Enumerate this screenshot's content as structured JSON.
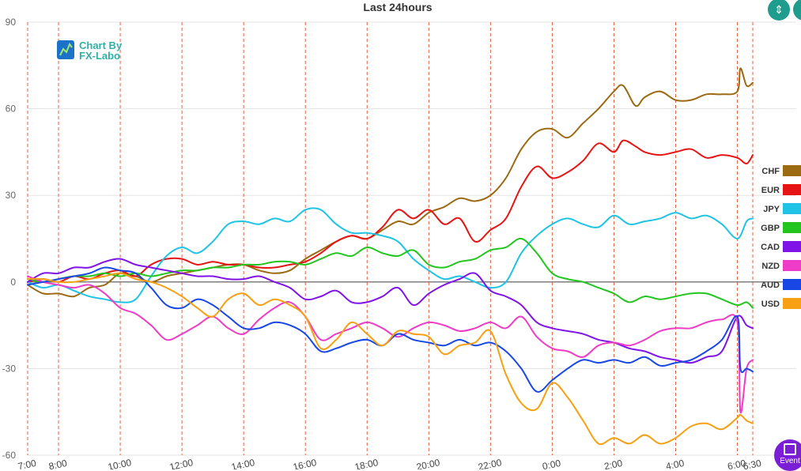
{
  "chart_data": {
    "type": "line",
    "title": "Last 24hours",
    "xlabel": "",
    "ylabel": "",
    "ylim": [
      -60,
      90
    ],
    "yticks": [
      90,
      60,
      30,
      0,
      -30,
      -60
    ],
    "x_range": [
      7.0,
      30.5
    ],
    "x_ticks": [
      {
        "label": "7:00",
        "x": 7.0
      },
      {
        "label": "8:00",
        "x": 8.0
      },
      {
        "label": "10:00",
        "x": 10.0
      },
      {
        "label": "12:00",
        "x": 12.0
      },
      {
        "label": "14:00",
        "x": 14.0
      },
      {
        "label": "16:00",
        "x": 16.0
      },
      {
        "label": "18:00",
        "x": 18.0
      },
      {
        "label": "20:00",
        "x": 20.0
      },
      {
        "label": "22:00",
        "x": 22.0
      },
      {
        "label": "0:00",
        "x": 24.0
      },
      {
        "label": "2:00",
        "x": 26.0
      },
      {
        "label": "4:00",
        "x": 28.0
      },
      {
        "label": "6:00",
        "x": 30.0
      },
      {
        "label": "6:30",
        "x": 30.5
      }
    ],
    "vertical_gridlines_dashed": true,
    "horizontal_grid": true,
    "legend_placement": "right",
    "series": [
      {
        "name": "CHF",
        "color": "#9b6a12",
        "x": [
          7,
          7.5,
          8,
          8.5,
          9,
          9.5,
          10,
          10.5,
          11,
          11.5,
          12,
          12.5,
          13,
          13.5,
          14,
          14.5,
          15,
          15.5,
          16,
          16.5,
          17,
          17.5,
          18,
          18.5,
          19,
          19.5,
          20,
          20.5,
          21,
          21.5,
          22,
          22.5,
          23,
          23.5,
          24,
          24.5,
          25,
          25.5,
          26,
          26.3,
          26.7,
          27,
          27.5,
          28,
          28.5,
          29,
          29.5,
          30,
          30.1,
          30.3,
          30.5
        ],
        "y": [
          -1,
          -4,
          -4,
          -5,
          -2,
          -1,
          3,
          2,
          0,
          2,
          3,
          4,
          5,
          6,
          6,
          4,
          3,
          4,
          8,
          11,
          14,
          16,
          15,
          18,
          21,
          20,
          24,
          26,
          29,
          28,
          30,
          36,
          46,
          52,
          53,
          50,
          55,
          60,
          66,
          68,
          61,
          64,
          66,
          63,
          63,
          65,
          65,
          66,
          74,
          68,
          69
        ]
      },
      {
        "name": "EUR",
        "color": "#e61414",
        "x": [
          7,
          7.5,
          8,
          8.5,
          9,
          9.5,
          10,
          10.5,
          11,
          11.5,
          12,
          12.5,
          13,
          13.5,
          14,
          14.5,
          15,
          15.5,
          16,
          16.5,
          17,
          17.5,
          18,
          18.5,
          19,
          19.5,
          20,
          20.5,
          21,
          21.5,
          22,
          22.5,
          23,
          23.5,
          24,
          24.5,
          25,
          25.5,
          26,
          26.3,
          26.7,
          27,
          27.5,
          28,
          28.5,
          29,
          29.5,
          30,
          30.3,
          30.5
        ],
        "y": [
          0,
          1,
          0,
          2,
          1,
          3,
          4,
          2,
          6,
          8,
          8,
          6,
          7,
          6,
          6,
          5,
          5,
          6,
          7,
          10,
          14,
          16,
          15,
          19,
          25,
          22,
          25,
          20,
          22,
          14,
          18,
          22,
          33,
          40,
          36,
          38,
          42,
          48,
          45,
          49,
          47,
          45,
          44,
          45,
          46,
          43,
          44,
          43,
          41,
          44
        ]
      },
      {
        "name": "JPY",
        "color": "#1ec3e6",
        "x": [
          7,
          7.5,
          8,
          8.5,
          9,
          9.5,
          10,
          10.5,
          11,
          11.5,
          12,
          12.5,
          13,
          13.5,
          14,
          14.5,
          15,
          15.5,
          16,
          16.5,
          17,
          17.5,
          18,
          18.5,
          19,
          19.5,
          20,
          20.5,
          21,
          21.5,
          22,
          22.5,
          23,
          23.5,
          24,
          24.5,
          25,
          25.5,
          26,
          26.5,
          27,
          27.5,
          28,
          28.5,
          29,
          29.5,
          30,
          30.3,
          30.5
        ],
        "y": [
          0,
          -2,
          -1,
          -3,
          -5,
          -6,
          -7,
          -6,
          2,
          9,
          12,
          10,
          14,
          20,
          21,
          20,
          22,
          21,
          25,
          25,
          20,
          17,
          17,
          16,
          14,
          8,
          4,
          1,
          2,
          0,
          -2,
          0,
          10,
          16,
          20,
          22,
          20,
          19,
          23,
          20,
          21,
          22,
          24,
          22,
          23,
          20,
          15,
          21,
          22
        ]
      },
      {
        "name": "GBP",
        "color": "#22c61f",
        "x": [
          7,
          7.5,
          8,
          8.5,
          9,
          9.5,
          10,
          10.5,
          11,
          11.5,
          12,
          12.5,
          13,
          13.5,
          14,
          14.5,
          15,
          15.5,
          16,
          16.5,
          17,
          17.5,
          18,
          18.5,
          19,
          19.5,
          20,
          20.5,
          21,
          21.5,
          22,
          22.5,
          23,
          23.5,
          24,
          24.5,
          25,
          25.5,
          26,
          26.5,
          27,
          27.5,
          28,
          28.5,
          29,
          29.5,
          30,
          30.3,
          30.5
        ],
        "y": [
          1,
          0,
          1,
          2,
          2,
          3,
          2,
          3,
          2,
          3,
          4,
          4,
          5,
          5,
          6,
          6,
          7,
          7,
          6,
          8,
          10,
          9,
          12,
          10,
          9,
          11,
          6,
          5,
          7,
          8,
          11,
          12,
          15,
          10,
          3,
          1,
          0,
          -2,
          -4,
          -7,
          -5,
          -6,
          -5,
          -4,
          -4,
          -6,
          -8,
          -7,
          -9
        ]
      },
      {
        "name": "CAD",
        "color": "#7f13e8",
        "x": [
          7,
          7.5,
          8,
          8.5,
          9,
          9.5,
          10,
          10.5,
          11,
          11.5,
          12,
          12.5,
          13,
          13.5,
          14,
          14.5,
          15,
          15.5,
          16,
          16.5,
          17,
          17.5,
          18,
          18.5,
          19,
          19.5,
          20,
          20.5,
          21,
          21.5,
          22,
          22.5,
          23,
          23.5,
          24,
          24.5,
          25,
          25.5,
          26,
          26.5,
          27,
          27.5,
          28,
          28.5,
          29,
          29.5,
          30,
          30.3,
          30.5
        ],
        "y": [
          0,
          3,
          3,
          5,
          5,
          7,
          8,
          6,
          5,
          4,
          3,
          2,
          2,
          1,
          1,
          2,
          0,
          -2,
          -6,
          -5,
          -3,
          -7,
          -7,
          -5,
          -2,
          -8,
          -4,
          -1,
          1,
          3,
          -3,
          -5,
          -8,
          -14,
          -16,
          -17,
          -18,
          -20,
          -21,
          -23,
          -24,
          -26,
          -27,
          -28,
          -26,
          -24,
          -12,
          -15,
          -16
        ]
      },
      {
        "name": "NZD",
        "color": "#ee3cc6",
        "x": [
          7,
          7.5,
          8,
          8.5,
          9,
          9.5,
          10,
          10.5,
          11,
          11.5,
          12,
          12.5,
          13,
          13.5,
          14,
          14.5,
          15,
          15.5,
          16,
          16.5,
          17,
          17.5,
          18,
          18.5,
          19,
          19.5,
          20,
          20.5,
          21,
          21.5,
          22,
          22.5,
          23,
          23.5,
          24,
          24.5,
          25,
          25.5,
          26,
          26.5,
          27,
          27.5,
          28,
          28.5,
          29,
          29.5,
          30,
          30.1,
          30.3,
          30.5
        ],
        "y": [
          2,
          0,
          -1,
          -2,
          -1,
          -4,
          -9,
          -11,
          -15,
          -20,
          -18,
          -15,
          -12,
          -16,
          -18,
          -13,
          -9,
          -7,
          -12,
          -20,
          -18,
          -16,
          -14,
          -16,
          -19,
          -16,
          -14,
          -15,
          -17,
          -16,
          -14,
          -16,
          -12,
          -19,
          -23,
          -24,
          -26,
          -22,
          -21,
          -22,
          -20,
          -17,
          -16,
          -16,
          -14,
          -13,
          -14,
          -45,
          -30,
          -27
        ]
      },
      {
        "name": "AUD",
        "color": "#1947e6",
        "x": [
          7,
          7.5,
          8,
          8.5,
          9,
          9.5,
          10,
          10.5,
          11,
          11.5,
          12,
          12.5,
          13,
          13.5,
          14,
          14.5,
          15,
          15.5,
          16,
          16.5,
          17,
          17.5,
          18,
          18.5,
          19,
          19.5,
          20,
          20.5,
          21,
          21.5,
          22,
          22.5,
          23,
          23.5,
          24,
          24.5,
          25,
          25.5,
          26,
          26.5,
          27,
          27.5,
          28,
          28.5,
          29,
          29.5,
          30,
          30.1,
          30.3,
          30.5
        ],
        "y": [
          -1,
          0,
          1,
          2,
          3,
          5,
          4,
          3,
          -2,
          -8,
          -9,
          -6,
          -8,
          -12,
          -16,
          -16,
          -14,
          -15,
          -18,
          -24,
          -23,
          -21,
          -20,
          -22,
          -18,
          -20,
          -21,
          -22,
          -20,
          -22,
          -21,
          -24,
          -30,
          -38,
          -34,
          -30,
          -27,
          -28,
          -27,
          -28,
          -26,
          -29,
          -28,
          -27,
          -24,
          -20,
          -12,
          -30,
          -30,
          -31
        ]
      },
      {
        "name": "USD",
        "color": "#f7a012",
        "x": [
          7,
          7.5,
          8,
          8.5,
          9,
          9.5,
          10,
          10.5,
          11,
          11.5,
          12,
          12.5,
          13,
          13.5,
          14,
          14.5,
          15,
          15.5,
          16,
          16.5,
          17,
          17.5,
          18,
          18.5,
          19,
          19.5,
          20,
          20.5,
          21,
          21.5,
          22,
          22.5,
          23,
          23.5,
          24,
          24.5,
          25,
          25.5,
          26,
          26.5,
          27,
          27.5,
          28,
          28.5,
          29,
          29.5,
          30,
          30.1,
          30.3,
          30.5
        ],
        "y": [
          1,
          1,
          0,
          0,
          1,
          2,
          3,
          1,
          0,
          -2,
          -5,
          -9,
          -12,
          -6,
          -4,
          -8,
          -6,
          -8,
          -12,
          -23,
          -20,
          -14,
          -18,
          -22,
          -17,
          -18,
          -19,
          -25,
          -22,
          -21,
          -17,
          -32,
          -42,
          -44,
          -35,
          -40,
          -48,
          -56,
          -54,
          -56,
          -53,
          -56,
          -54,
          -50,
          -49,
          -51,
          -47,
          -46,
          -48,
          -49
        ]
      }
    ]
  },
  "logo": {
    "line1": "Chart By",
    "line2": "FX-Labo"
  },
  "event_button": {
    "label": "Event"
  },
  "icons": {
    "top_button_1": "compress-icon",
    "top_button_2": "expand-icon",
    "event": "calendar-icon"
  }
}
